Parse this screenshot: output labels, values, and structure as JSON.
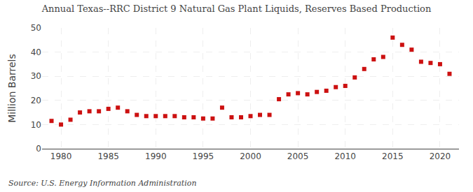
{
  "chart_data": {
    "type": "scatter",
    "title": "Annual Texas--RRC District 9 Natural Gas Plant Liquids, Reserves Based Production",
    "ylabel": "Million Barrels",
    "annotations": [
      "Source: U.S. Energy Information Administration"
    ],
    "x": [
      1979,
      1980,
      1981,
      1982,
      1983,
      1984,
      1985,
      1986,
      1987,
      1988,
      1989,
      1990,
      1991,
      1992,
      1993,
      1994,
      1995,
      1996,
      1997,
      1998,
      1999,
      2000,
      2001,
      2002,
      2003,
      2004,
      2005,
      2006,
      2007,
      2008,
      2009,
      2010,
      2011,
      2012,
      2013,
      2014,
      2015,
      2016,
      2017,
      2018,
      2019,
      2020,
      2021
    ],
    "values": [
      11.5,
      10.0,
      12.0,
      15.0,
      15.5,
      15.5,
      16.5,
      17.0,
      15.5,
      14.0,
      13.5,
      13.5,
      13.5,
      13.5,
      13.0,
      13.0,
      12.5,
      12.5,
      17.0,
      13.0,
      13.0,
      13.5,
      14.0,
      14.0,
      20.5,
      22.5,
      23.0,
      22.5,
      23.5,
      24.0,
      25.5,
      26.0,
      29.5,
      33.0,
      37.0,
      38.0,
      46.0,
      43.0,
      41.0,
      36.0,
      35.5,
      35.0,
      31.0
    ],
    "color": "#cc1111",
    "marker": "square",
    "xlim": [
      1978,
      2022
    ],
    "ylim": [
      0,
      50
    ],
    "xticks": [
      1980,
      1985,
      1990,
      1995,
      2000,
      2005,
      2010,
      2015,
      2020
    ],
    "yticks": [
      0,
      10,
      20,
      30,
      40,
      50
    ],
    "grid": true
  }
}
